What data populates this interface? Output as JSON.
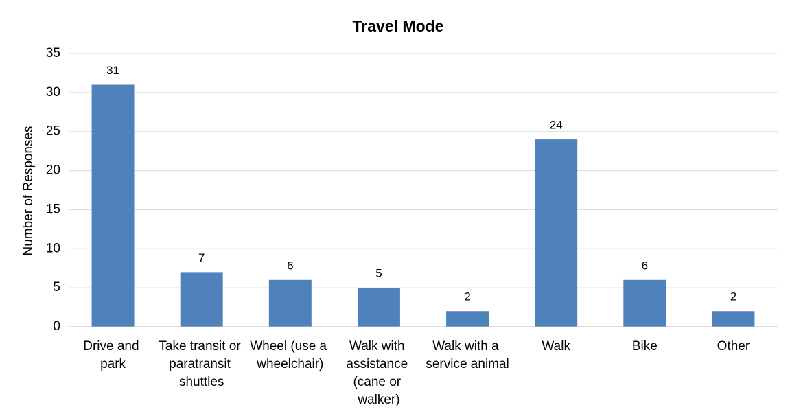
{
  "chart_data": {
    "type": "bar",
    "title": "Travel Mode",
    "y_label": "Number of Responses",
    "categories": [
      "Drive and park",
      "Take transit or paratransit shuttles",
      "Wheel (use a wheelchair)",
      "Walk with assistance (cane or walker)",
      "Walk with a service animal",
      "Walk",
      "Bike",
      "Other"
    ],
    "values": [
      31,
      7,
      6,
      5,
      2,
      24,
      6,
      2
    ],
    "color": "#4f81bd",
    "ylim": [
      0,
      35
    ],
    "yticks": [
      0,
      5,
      10,
      15,
      20,
      25,
      30,
      35
    ],
    "grid": true
  }
}
